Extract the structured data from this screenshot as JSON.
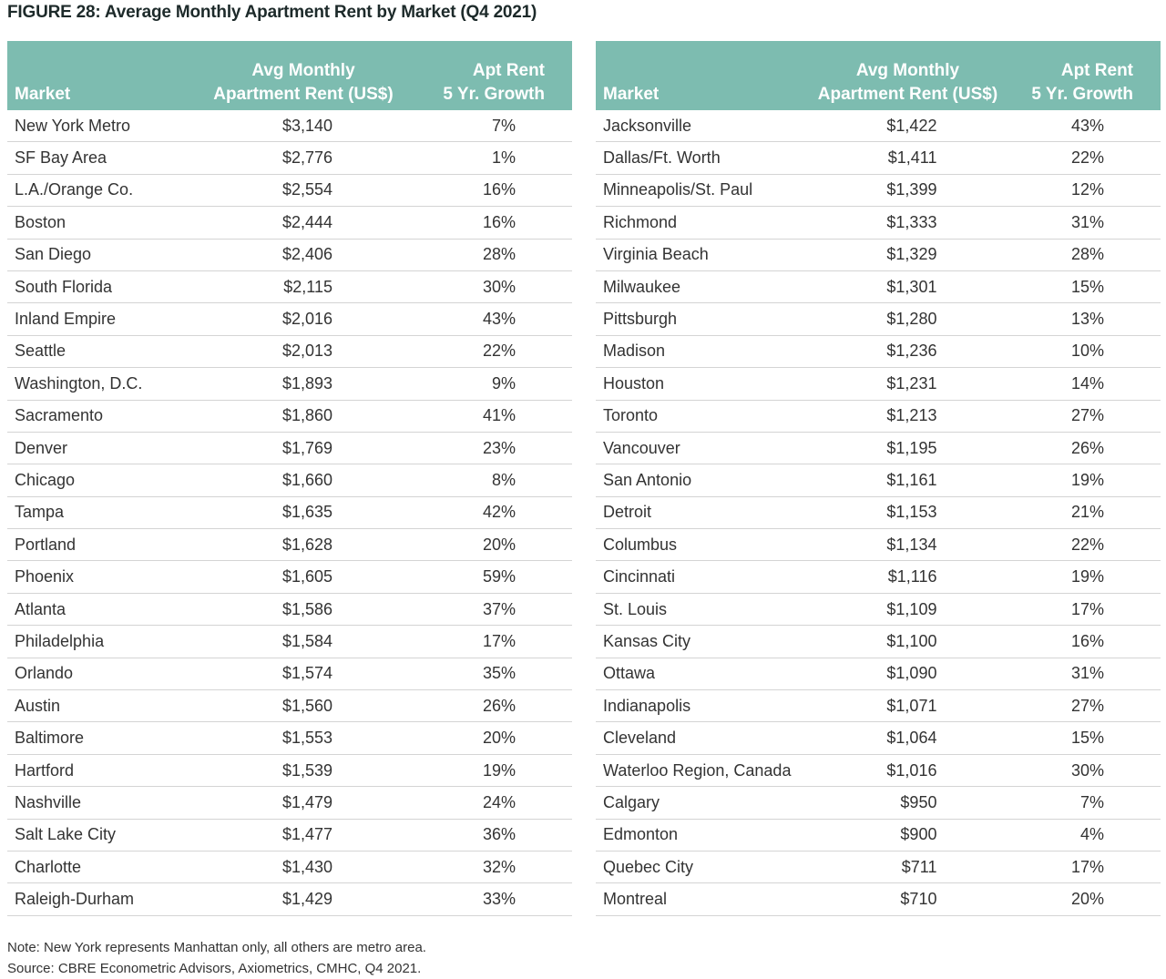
{
  "figure": {
    "title": "FIGURE 28: Average Monthly Apartment Rent by Market (Q4 2021)"
  },
  "columns": {
    "market": "Market",
    "rent_line1": "Avg Monthly",
    "rent_line2": "Apartment Rent (US$)",
    "growth_line1": "Apt Rent",
    "growth_line2": "5 Yr. Growth"
  },
  "left_table": [
    [
      "New York Metro",
      "$3,140",
      "7%"
    ],
    [
      "SF Bay Area",
      "$2,776",
      "1%"
    ],
    [
      "L.A./Orange Co.",
      "$2,554",
      "16%"
    ],
    [
      "Boston",
      "$2,444",
      "16%"
    ],
    [
      "San Diego",
      "$2,406",
      "28%"
    ],
    [
      "South Florida",
      "$2,115",
      "30%"
    ],
    [
      "Inland Empire",
      "$2,016",
      "43%"
    ],
    [
      "Seattle",
      "$2,013",
      "22%"
    ],
    [
      "Washington, D.C.",
      "$1,893",
      "9%"
    ],
    [
      "Sacramento",
      "$1,860",
      "41%"
    ],
    [
      "Denver",
      "$1,769",
      "23%"
    ],
    [
      "Chicago",
      "$1,660",
      "8%"
    ],
    [
      "Tampa",
      "$1,635",
      "42%"
    ],
    [
      "Portland",
      "$1,628",
      "20%"
    ],
    [
      "Phoenix",
      "$1,605",
      "59%"
    ],
    [
      "Atlanta",
      "$1,586",
      "37%"
    ],
    [
      "Philadelphia",
      "$1,584",
      "17%"
    ],
    [
      "Orlando",
      "$1,574",
      "35%"
    ],
    [
      "Austin",
      "$1,560",
      "26%"
    ],
    [
      "Baltimore",
      "$1,553",
      "20%"
    ],
    [
      "Hartford",
      "$1,539",
      "19%"
    ],
    [
      "Nashville",
      "$1,479",
      "24%"
    ],
    [
      "Salt Lake City",
      "$1,477",
      "36%"
    ],
    [
      "Charlotte",
      "$1,430",
      "32%"
    ],
    [
      "Raleigh-Durham",
      "$1,429",
      "33%"
    ]
  ],
  "right_table": [
    [
      "Jacksonville",
      "$1,422",
      "43%"
    ],
    [
      "Dallas/Ft. Worth",
      "$1,411",
      "22%"
    ],
    [
      "Minneapolis/St. Paul",
      "$1,399",
      "12%"
    ],
    [
      "Richmond",
      "$1,333",
      "31%"
    ],
    [
      "Virginia Beach",
      "$1,329",
      "28%"
    ],
    [
      "Milwaukee",
      "$1,301",
      "15%"
    ],
    [
      "Pittsburgh",
      "$1,280",
      "13%"
    ],
    [
      "Madison",
      "$1,236",
      "10%"
    ],
    [
      "Houston",
      "$1,231",
      "14%"
    ],
    [
      "Toronto",
      "$1,213",
      "27%"
    ],
    [
      "Vancouver",
      "$1,195",
      "26%"
    ],
    [
      "San Antonio",
      "$1,161",
      "19%"
    ],
    [
      "Detroit",
      "$1,153",
      "21%"
    ],
    [
      "Columbus",
      "$1,134",
      "22%"
    ],
    [
      "Cincinnati",
      "$1,116",
      "19%"
    ],
    [
      "St. Louis",
      "$1,109",
      "17%"
    ],
    [
      "Kansas City",
      "$1,100",
      "16%"
    ],
    [
      "Ottawa",
      "$1,090",
      "31%"
    ],
    [
      "Indianapolis",
      "$1,071",
      "27%"
    ],
    [
      "Cleveland",
      "$1,064",
      "15%"
    ],
    [
      "Waterloo Region, Canada",
      "$1,016",
      "30%"
    ],
    [
      "Calgary",
      "$950",
      "7%"
    ],
    [
      "Edmonton",
      "$900",
      "4%"
    ],
    [
      "Quebec City",
      "$711",
      "17%"
    ],
    [
      "Montreal",
      "$710",
      "20%"
    ]
  ],
  "notes": {
    "note": "Note: New York represents Manhattan only, all others are metro area.",
    "source": "Source: CBRE Econometric Advisors, Axiometrics, CMHC, Q4 2021."
  }
}
